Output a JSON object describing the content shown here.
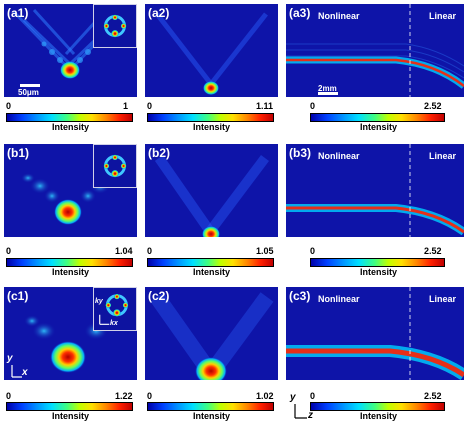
{
  "panels": {
    "a1": {
      "label": "(a1)",
      "scale": "50μm",
      "cmin": "0",
      "cmax": "1"
    },
    "a2": {
      "label": "(a2)",
      "cmin": "0",
      "cmax": "1.11"
    },
    "a3": {
      "label": "(a3)",
      "scale": "2mm",
      "cmin": "0",
      "cmax": "2.52"
    },
    "b1": {
      "label": "(b1)",
      "cmin": "0",
      "cmax": "1.04"
    },
    "b2": {
      "label": "(b2)",
      "cmin": "0",
      "cmax": "1.05"
    },
    "b3": {
      "label": "(b3)",
      "cmin": "0",
      "cmax": "2.52"
    },
    "c1": {
      "label": "(c1)",
      "cmin": "0",
      "cmax": "1.22"
    },
    "c2": {
      "label": "(c2)",
      "cmin": "0",
      "cmax": "1.02"
    },
    "c3": {
      "label": "(c3)",
      "cmin": "0",
      "cmax": "2.52"
    }
  },
  "text": {
    "intensity": "Intensity",
    "nonlinear": "Nonlinear",
    "linear": "Linear",
    "axis_x": "x",
    "axis_y": "y",
    "axis_z": "z",
    "axis_kx": "kx",
    "axis_ky": "ky"
  },
  "colors": {
    "background": "#0e14a8",
    "peak": "#c00000",
    "beam": "#00e0ff"
  }
}
